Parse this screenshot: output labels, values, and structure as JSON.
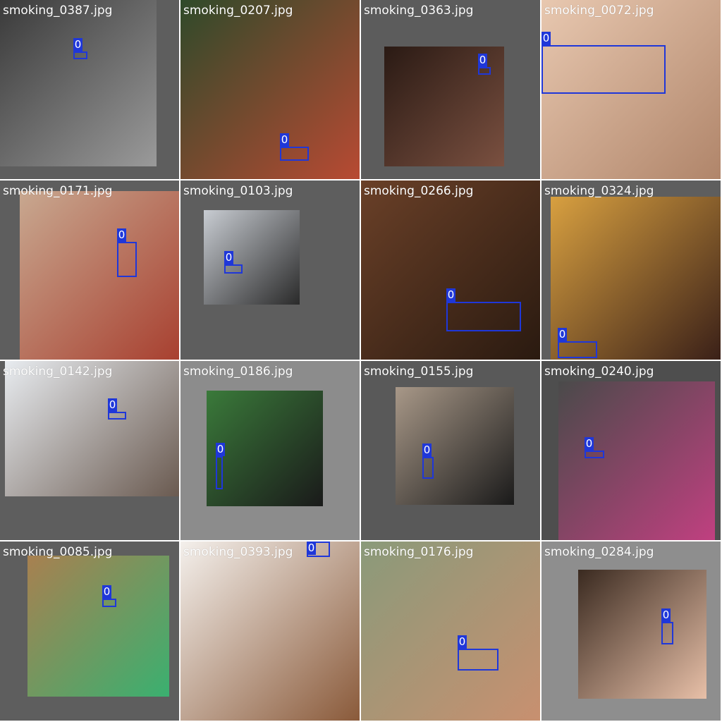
{
  "colors": {
    "box": "#1f37d9",
    "label_text": "#ffffff"
  },
  "tiles": [
    {
      "filename": "smoking_0387.jpg",
      "bg": "#5e5e5e",
      "photo_colors": [
        "#3a3a3a",
        "#9a9a9a"
      ],
      "class_label": "0"
    },
    {
      "filename": "smoking_0207.jpg",
      "bg": "#5e5e5e",
      "photo_colors": [
        "#2f4a2a",
        "#b84a33"
      ],
      "class_label": "0"
    },
    {
      "filename": "smoking_0363.jpg",
      "bg": "#5c5c5c",
      "photo_colors": [
        "#2a1a14",
        "#7a5040"
      ],
      "class_label": "0"
    },
    {
      "filename": "smoking_0072.jpg",
      "bg": "#c79a80",
      "photo_colors": [
        "#e8c8b0",
        "#b0856a"
      ],
      "class_label": "0"
    },
    {
      "filename": "smoking_0171.jpg",
      "bg": "#5e5e5e",
      "photo_colors": [
        "#c8a890",
        "#a84030"
      ],
      "class_label": "0"
    },
    {
      "filename": "smoking_0103.jpg",
      "bg": "#5e5e5e",
      "photo_colors": [
        "#c8ccd2",
        "#2a2a2a"
      ],
      "class_label": "0"
    },
    {
      "filename": "smoking_0266.jpg",
      "bg": "#4a3020",
      "photo_colors": [
        "#6a4028",
        "#2a1a10"
      ],
      "class_label": "0"
    },
    {
      "filename": "smoking_0324.jpg",
      "bg": "#5e5e5e",
      "photo_colors": [
        "#d8a040",
        "#3a2018"
      ],
      "class_label": "0"
    },
    {
      "filename": "smoking_0142.jpg",
      "bg": "#5e5e5e",
      "photo_colors": [
        "#e8ecf0",
        "#6a5a50"
      ],
      "class_label": "0"
    },
    {
      "filename": "smoking_0186.jpg",
      "bg": "#8c8c8c",
      "photo_colors": [
        "#3a7a3a",
        "#1a1a1a"
      ],
      "class_label": "0"
    },
    {
      "filename": "smoking_0155.jpg",
      "bg": "#595959",
      "photo_colors": [
        "#a89888",
        "#1a1a1a"
      ],
      "class_label": "0"
    },
    {
      "filename": "smoking_0240.jpg",
      "bg": "#4e4e4e",
      "photo_colors": [
        "#4a4a4a",
        "#c04080"
      ],
      "class_label": "0"
    },
    {
      "filename": "smoking_0085.jpg",
      "bg": "#5e5e5e",
      "photo_colors": [
        "#a88050",
        "#3ab070"
      ],
      "class_label": "0"
    },
    {
      "filename": "smoking_0393.jpg",
      "bg": "#e8e0d8",
      "photo_colors": [
        "#f4f0ec",
        "#8a5a3a"
      ],
      "class_label": "0"
    },
    {
      "filename": "smoking_0176.jpg",
      "bg": "#4a5a4a",
      "photo_colors": [
        "#8a9a7a",
        "#c89070"
      ],
      "class_label": "0"
    },
    {
      "filename": "smoking_0284.jpg",
      "bg": "#8e8e8e",
      "photo_colors": [
        "#3a2a20",
        "#e8c0a8"
      ],
      "class_label": "0"
    }
  ]
}
